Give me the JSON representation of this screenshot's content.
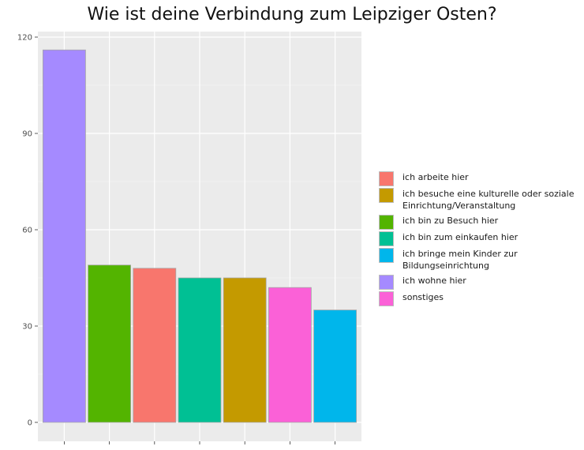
{
  "chart_data": {
    "type": "bar",
    "title": "Wie ist deine Verbindung zum Leipziger Osten?",
    "xlabel": "",
    "ylabel": "",
    "ylim": [
      0,
      122
    ],
    "yticks": [
      0,
      30,
      60,
      90,
      120
    ],
    "grid": true,
    "legend_position": "right",
    "categories": [
      "ich wohne hier",
      "ich bin zu Besuch hier",
      "ich arbeite hier",
      "ich bin zum einkaufen hier",
      "ich besuche eine kulturelle oder soziale Einrichtung/Veranstaltung",
      "sonstiges",
      "ich bringe mein Kinder zur Bildungseinrichtung"
    ],
    "values": [
      116,
      49,
      48,
      45,
      45,
      42,
      35
    ],
    "colors": [
      "#A58AFF",
      "#53B400",
      "#F8766D",
      "#00C094",
      "#C49A00",
      "#FB61D7",
      "#00B6EB"
    ],
    "legend": [
      {
        "label": "ich arbeite hier",
        "color": "#F8766D"
      },
      {
        "label": "ich besuche eine kulturelle oder soziale Einrichtung/Veranstaltung",
        "color": "#C49A00"
      },
      {
        "label": "ich bin zu Besuch hier",
        "color": "#53B400"
      },
      {
        "label": "ich bin zum einkaufen hier",
        "color": "#00C094"
      },
      {
        "label": "ich bringe mein Kinder zur Bildungseinrichtung",
        "color": "#00B6EB"
      },
      {
        "label": "ich wohne hier",
        "color": "#A58AFF"
      },
      {
        "label": "sonstiges",
        "color": "#FB61D7"
      }
    ]
  }
}
